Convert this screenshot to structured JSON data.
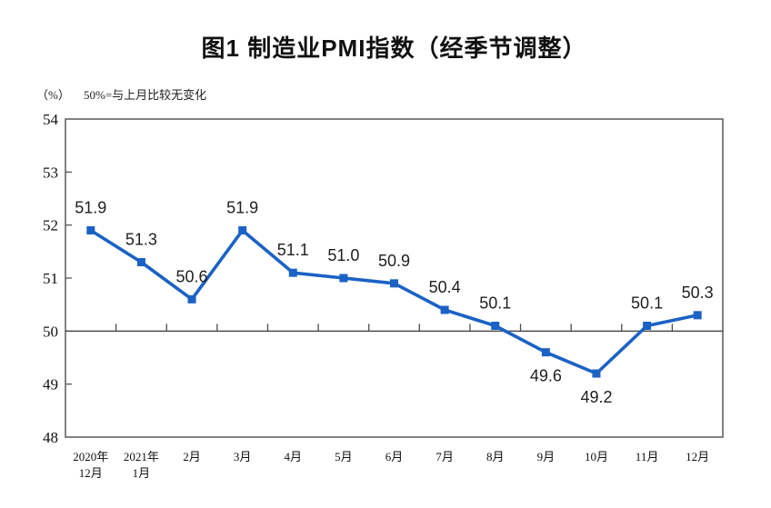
{
  "header": {
    "title": "图1 制造业PMI指数（经季节调整）"
  },
  "chart_data": {
    "type": "line",
    "title": "图1 制造业PMI指数（经季节调整）",
    "unit_label": "（%）",
    "note": "50%=与上月比较无变化",
    "categories": [
      "2020年12月",
      "2021年1月",
      "2月",
      "3月",
      "4月",
      "5月",
      "6月",
      "7月",
      "8月",
      "9月",
      "10月",
      "11月",
      "12月"
    ],
    "category_label_lines": [
      [
        "2020年",
        "12月"
      ],
      [
        "2021年",
        "1月"
      ],
      [
        "2月"
      ],
      [
        "3月"
      ],
      [
        "4月"
      ],
      [
        "5月"
      ],
      [
        "6月"
      ],
      [
        "7月"
      ],
      [
        "8月"
      ],
      [
        "9月"
      ],
      [
        "10月"
      ],
      [
        "11月"
      ],
      [
        "12月"
      ]
    ],
    "series": [
      {
        "name": "制造业PMI",
        "values": [
          51.9,
          51.3,
          50.6,
          51.9,
          51.1,
          51.0,
          50.9,
          50.4,
          50.1,
          49.6,
          49.2,
          50.1,
          50.3
        ]
      }
    ],
    "data_labels": [
      "51.9",
      "51.3",
      "50.6",
      "51.9",
      "51.1",
      "51.0",
      "50.9",
      "50.4",
      "50.1",
      "49.6",
      "49.2",
      "50.1",
      "50.3"
    ],
    "data_label_positions": [
      "above",
      "above",
      "above",
      "above",
      "above",
      "above",
      "above",
      "above",
      "above",
      "below",
      "below",
      "above",
      "above"
    ],
    "xlabel": "",
    "ylabel": "(%)",
    "ylim": [
      48,
      54
    ],
    "ytick_interval": 1,
    "yticks": [
      48,
      49,
      50,
      51,
      52,
      53,
      54
    ],
    "x_axis_cross_at": 50,
    "grid": false,
    "legend_position": "none",
    "colors": {
      "line": "#1B62C5",
      "marker": "#1B62C5",
      "axis": "#595959",
      "zero_line": "#4D4D4D",
      "data_label_text": "#1F1F1F",
      "axis_label_text": "#111111"
    }
  }
}
